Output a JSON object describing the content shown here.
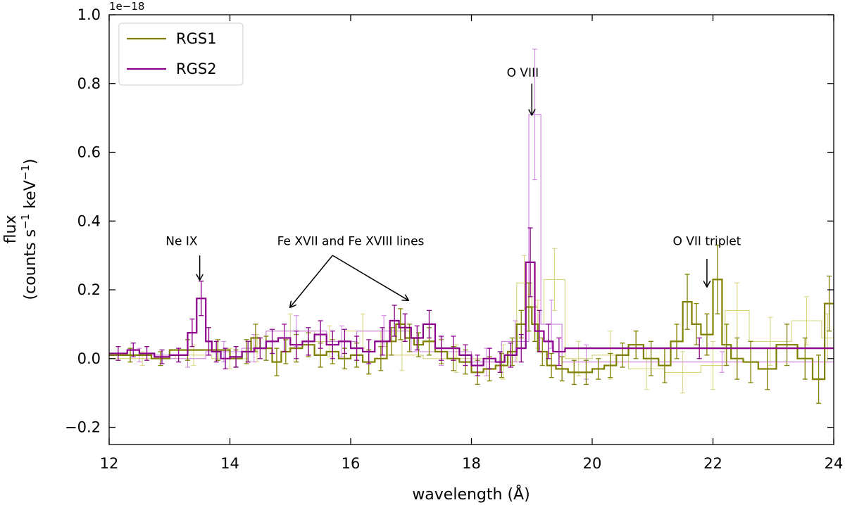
{
  "chart_data": {
    "type": "line",
    "xlabel": "wavelength (Å)",
    "ylabel_line1": "flux",
    "ylabel_line2": "(counts s",
    "ylabel_sup1": "−1",
    "ylabel_mid": " keV",
    "ylabel_sup2": "−1",
    "ylabel_end": ")",
    "offset_text": "1e−18",
    "xlim": [
      12,
      24
    ],
    "ylim": [
      -0.25,
      1.0
    ],
    "xticks": [
      12,
      14,
      16,
      18,
      20,
      22,
      24
    ],
    "xtick_labels": [
      "12",
      "14",
      "16",
      "18",
      "20",
      "22",
      "24"
    ],
    "yticks": [
      -0.2,
      0.0,
      0.2,
      0.4,
      0.6,
      0.8,
      1.0
    ],
    "ytick_labels": [
      "−0.2",
      "0.0",
      "0.2",
      "0.4",
      "0.6",
      "0.8",
      "1.0"
    ],
    "legend": {
      "location": "top-left",
      "entries": [
        "RGS1",
        "RGS2"
      ]
    },
    "colors": {
      "rgs1": "#808000",
      "rgs1_light": "#d4d47a",
      "rgs2": "#8b008b",
      "rgs2_light": "#cc7fe0",
      "axis": "#000000"
    },
    "annotations": [
      {
        "text": "Ne IX",
        "label_x": 13.2,
        "label_y": 0.33,
        "arrows": [
          {
            "from": [
              13.5,
              0.3
            ],
            "to": [
              13.5,
              0.23
            ]
          }
        ]
      },
      {
        "text": "Fe XVII and Fe XVIII lines",
        "label_x": 16.0,
        "label_y": 0.33,
        "arrows": [
          {
            "from": [
              15.7,
              0.3
            ],
            "to": [
              15.0,
              0.15
            ]
          },
          {
            "from": [
              15.7,
              0.3
            ],
            "to": [
              16.95,
              0.17
            ]
          }
        ]
      },
      {
        "text": "O VIII",
        "label_x": 18.85,
        "label_y": 0.82,
        "arrows": [
          {
            "from": [
              19.0,
              0.8
            ],
            "to": [
              19.0,
              0.71
            ]
          }
        ]
      },
      {
        "text": "O VII triplet",
        "label_x": 21.9,
        "label_y": 0.33,
        "arrows": [
          {
            "from": [
              21.9,
              0.29
            ],
            "to": [
              21.9,
              0.21
            ]
          }
        ]
      }
    ],
    "series": [
      {
        "name": "RGS1",
        "style": "bold",
        "color": "#808000",
        "edges": [
          12.0,
          12.7,
          13.0,
          13.6,
          14.0,
          14.2,
          14.35,
          14.5,
          14.7,
          14.85,
          15.0,
          15.2,
          15.4,
          15.6,
          15.8,
          16.0,
          16.2,
          16.4,
          16.6,
          16.75,
          16.9,
          17.05,
          17.2,
          17.4,
          17.6,
          17.8,
          18.0,
          18.2,
          18.4,
          18.6,
          18.75,
          18.9,
          19.0,
          19.1,
          19.25,
          19.4,
          19.6,
          19.8,
          20.0,
          20.2,
          20.4,
          20.6,
          20.85,
          21.1,
          21.3,
          21.5,
          21.65,
          21.8,
          22.0,
          22.15,
          22.3,
          22.5,
          22.75,
          23.05,
          23.4,
          23.65,
          23.85,
          24.0
        ],
        "values": [
          0.01,
          0.0,
          0.025,
          0.025,
          0.0,
          0.02,
          0.06,
          0.03,
          -0.01,
          0.02,
          0.03,
          0.04,
          0.01,
          0.02,
          0.0,
          0.01,
          -0.01,
          0.0,
          0.05,
          0.1,
          0.06,
          0.04,
          0.05,
          0.02,
          0.0,
          -0.01,
          -0.04,
          -0.03,
          -0.02,
          0.02,
          0.1,
          0.15,
          0.1,
          0.02,
          -0.02,
          -0.03,
          -0.04,
          -0.04,
          -0.03,
          -0.02,
          0.01,
          0.04,
          0.0,
          -0.02,
          0.05,
          0.165,
          0.1,
          0.07,
          0.23,
          0.04,
          0.0,
          -0.01,
          -0.03,
          0.04,
          0.0,
          -0.06,
          0.16
        ],
        "errors": [
          0.02,
          0.02,
          0.03,
          0.03,
          0.025,
          0.035,
          0.04,
          0.035,
          0.04,
          0.035,
          0.04,
          0.035,
          0.035,
          0.035,
          0.03,
          0.035,
          0.035,
          0.035,
          0.04,
          0.045,
          0.04,
          0.035,
          0.04,
          0.035,
          0.035,
          0.035,
          0.035,
          0.035,
          0.035,
          0.04,
          0.04,
          0.07,
          0.05,
          0.04,
          0.035,
          0.035,
          0.035,
          0.035,
          0.03,
          0.035,
          0.035,
          0.04,
          0.05,
          0.05,
          0.05,
          0.08,
          0.06,
          0.06,
          0.1,
          0.06,
          0.06,
          0.06,
          0.06,
          0.06,
          0.06,
          0.07,
          0.08
        ]
      },
      {
        "name": "RGS1 (coarse)",
        "style": "light",
        "color": "#d4d47a",
        "edges": [
          12.0,
          13.1,
          13.7,
          14.3,
          14.6,
          15.4,
          15.9,
          16.5,
          17.2,
          18.3,
          18.75,
          19.0,
          19.2,
          19.55,
          20.0,
          20.6,
          21.2,
          21.8,
          22.2,
          22.6,
          23.3,
          23.8,
          24.0
        ],
        "values": [
          0.0,
          0.01,
          0.0,
          0.03,
          0.08,
          0.05,
          0.08,
          0.01,
          0.0,
          -0.01,
          0.22,
          0.1,
          0.23,
          0.0,
          0.01,
          -0.03,
          -0.04,
          -0.02,
          0.14,
          0.05,
          0.11,
          0.06
        ],
        "errors": [
          0.02,
          0.03,
          0.03,
          0.04,
          0.05,
          0.045,
          0.05,
          0.045,
          0.04,
          0.05,
          0.08,
          0.07,
          0.09,
          0.05,
          0.07,
          0.06,
          0.06,
          0.07,
          0.08,
          0.07,
          0.07,
          0.07
        ]
      },
      {
        "name": "RGS2",
        "style": "bold",
        "color": "#8b008b",
        "edges": [
          12.0,
          12.3,
          12.5,
          12.75,
          13.0,
          13.3,
          13.45,
          13.6,
          13.7,
          13.85,
          14.0,
          14.2,
          14.4,
          14.6,
          14.8,
          15.0,
          15.2,
          15.4,
          15.6,
          15.8,
          16.0,
          16.2,
          16.4,
          16.65,
          16.8,
          17.0,
          17.2,
          17.4,
          17.6,
          17.8,
          18.0,
          18.2,
          18.4,
          18.55,
          18.75,
          18.9,
          19.05,
          19.2,
          19.35,
          19.55,
          24.0
        ],
        "values": [
          0.015,
          0.025,
          0.015,
          0.005,
          0.01,
          0.075,
          0.175,
          0.05,
          0.02,
          0.0,
          0.005,
          0.02,
          0.03,
          0.05,
          0.06,
          0.04,
          0.05,
          0.07,
          0.04,
          0.05,
          0.03,
          0.02,
          0.05,
          0.11,
          0.09,
          0.06,
          0.1,
          0.03,
          0.03,
          0.01,
          -0.02,
          0.0,
          -0.01,
          0.01,
          0.03,
          0.28,
          0.08,
          0.05,
          0.02,
          0.03
        ],
        "errors": [
          0.02,
          0.02,
          0.02,
          0.02,
          0.02,
          0.04,
          0.05,
          0.04,
          0.03,
          0.03,
          0.03,
          0.03,
          0.03,
          0.035,
          0.04,
          0.04,
          0.04,
          0.04,
          0.04,
          0.035,
          0.035,
          0.035,
          0.04,
          0.045,
          0.04,
          0.035,
          0.04,
          0.035,
          0.035,
          0.03,
          0.03,
          0.03,
          0.03,
          0.035,
          0.04,
          0.1,
          0.06,
          0.05,
          0.04,
          0.03
        ]
      },
      {
        "name": "RGS2 (coarse)",
        "style": "light",
        "color": "#cc7fe0",
        "edges": [
          12.0,
          13.0,
          13.6,
          14.2,
          14.6,
          15.6,
          16.1,
          17.0,
          18.0,
          18.5,
          18.95,
          19.15,
          19.5,
          20.3,
          24.0
        ],
        "values": [
          0.01,
          0.0,
          0.02,
          0.03,
          0.08,
          0.05,
          0.08,
          0.02,
          -0.01,
          0.05,
          0.71,
          0.1,
          -0.01,
          -0.01
        ],
        "errors": [
          0.02,
          0.025,
          0.03,
          0.04,
          0.045,
          0.045,
          0.045,
          0.04,
          0.04,
          0.06,
          0.19,
          0.07,
          0.05,
          0.03
        ]
      }
    ]
  }
}
